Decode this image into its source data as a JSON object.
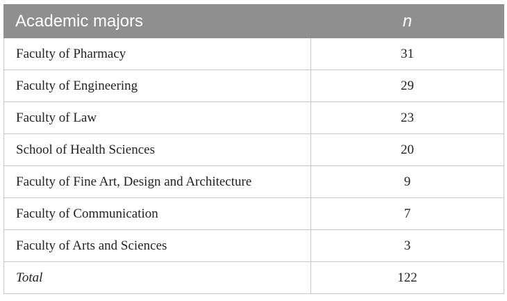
{
  "table": {
    "headers": {
      "major": "Academic majors",
      "n": "n"
    },
    "rows": [
      {
        "major": "Faculty of Pharmacy",
        "n": "31"
      },
      {
        "major": "Faculty of Engineering",
        "n": "29"
      },
      {
        "major": "Faculty of Law",
        "n": "23"
      },
      {
        "major": "School of Health Sciences",
        "n": "20"
      },
      {
        "major": "Faculty of Fine Art, Design and Architecture",
        "n": "9"
      },
      {
        "major": "Faculty of Communication",
        "n": "7"
      },
      {
        "major": "Faculty of Arts and Sciences",
        "n": "3"
      }
    ],
    "total": {
      "label": "Total",
      "n": "122"
    }
  },
  "colors": {
    "header_bg": "#8f8f90",
    "header_text": "#ffffff",
    "border": "#c8c8c8"
  }
}
